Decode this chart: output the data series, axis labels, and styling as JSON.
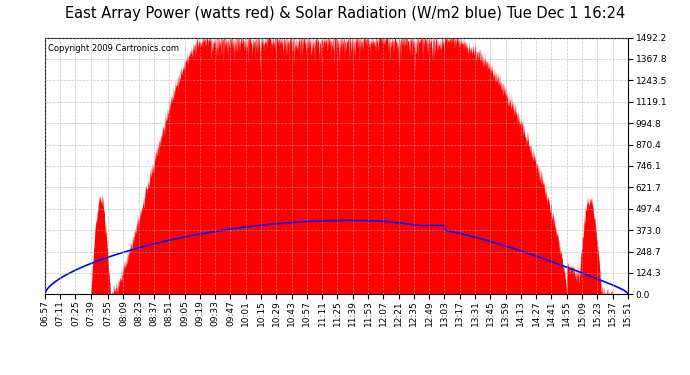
{
  "title": "East Array Power (watts red) & Solar Radiation (W/m2 blue) Tue Dec 1 16:24",
  "copyright": "Copyright 2009 Cartronics.com",
  "ymin": 0.0,
  "ymax": 1492.2,
  "yticks": [
    0.0,
    124.3,
    248.7,
    373.0,
    497.4,
    621.7,
    746.1,
    870.4,
    994.8,
    1119.1,
    1243.5,
    1367.8,
    1492.2
  ],
  "background_color": "#ffffff",
  "grid_color": "#aaaaaa",
  "fill_color": "#ff0000",
  "line_color": "#0000ff",
  "title_fontsize": 10.5,
  "tick_fontsize": 6.5,
  "copyright_fontsize": 6.0,
  "x_tick_labels": [
    "06:57",
    "07:11",
    "07:25",
    "07:39",
    "07:55",
    "08:09",
    "08:23",
    "08:37",
    "08:51",
    "09:05",
    "09:19",
    "09:33",
    "09:47",
    "10:01",
    "10:15",
    "10:29",
    "10:43",
    "10:57",
    "11:11",
    "11:25",
    "11:39",
    "11:53",
    "12:07",
    "12:21",
    "12:35",
    "12:49",
    "13:03",
    "13:17",
    "13:31",
    "13:45",
    "13:59",
    "14:13",
    "14:27",
    "14:41",
    "14:55",
    "15:09",
    "15:23",
    "15:37",
    "15:51"
  ],
  "power_rise_start": "07:57",
  "power_rise_end": "09:27",
  "power_plateau_end": "13:03",
  "power_drop_end": "14:55",
  "power_end": "15:37",
  "power_peak": 1492.2,
  "power_drop_level": 0.0,
  "early_bump_start": "07:39",
  "early_bump_end": "07:57",
  "early_bump_peak": 560,
  "late_spike_start": "15:05",
  "late_spike_end": "15:27",
  "late_spike_peak": 560,
  "solar_peak": 430,
  "solar_peak_time": "11:39",
  "solar_start": "06:57",
  "solar_end": "15:51",
  "noise_seed": 42,
  "noise_amplitude": 60
}
